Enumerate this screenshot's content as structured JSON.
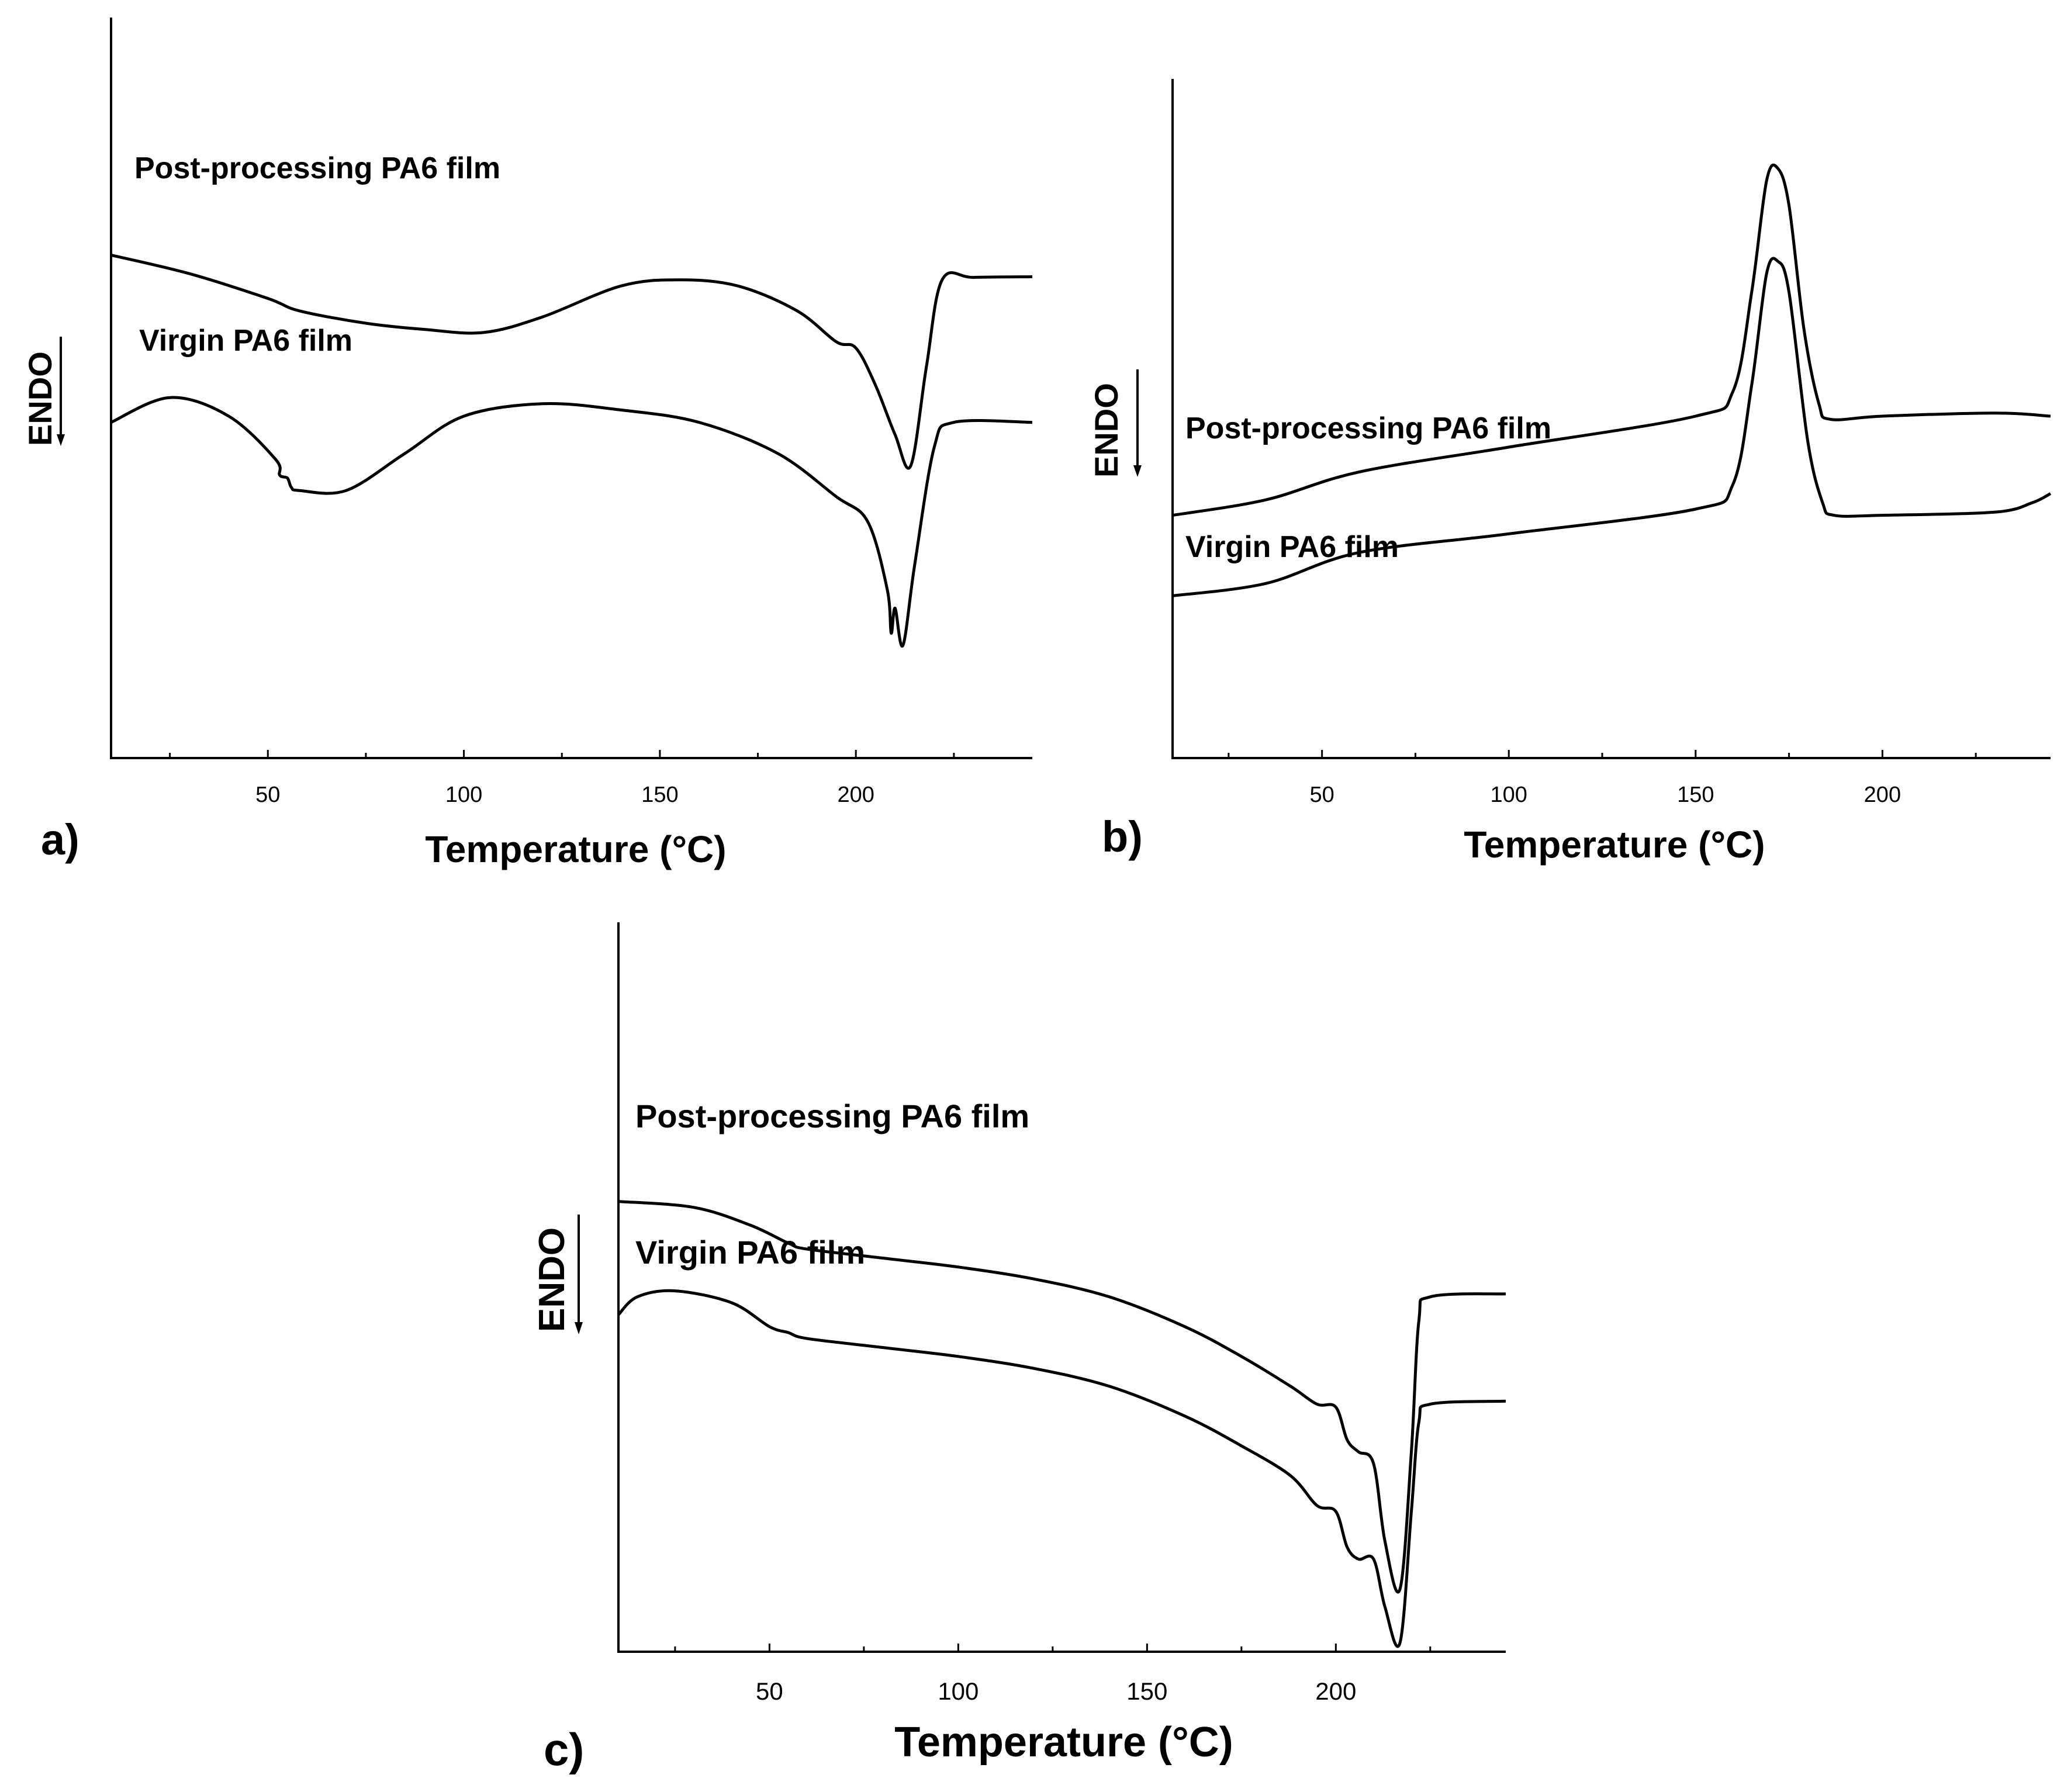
{
  "chart_data": [
    {
      "panel": "a)",
      "type": "line",
      "xlabel": "Temperature (°C)",
      "ylabel": "ENDO",
      "xlim": [
        10,
        245
      ],
      "ylim": [
        0,
        100
      ],
      "xticks": [
        50,
        100,
        150,
        200
      ],
      "series": [
        {
          "name": "Post-processing PA6 film",
          "x": [
            10,
            30,
            50,
            58,
            75,
            90,
            105,
            120,
            140,
            155,
            170,
            185,
            195,
            200,
            205,
            210,
            214,
            218,
            222,
            230,
            245
          ],
          "y": [
            76,
            73,
            69,
            67,
            65,
            64,
            63.5,
            66,
            71,
            72,
            71,
            67,
            62,
            61,
            55,
            47,
            42,
            58,
            72,
            72.4,
            72.5
          ]
        },
        {
          "name": "Virgin PA6 film",
          "x": [
            10,
            25,
            40,
            52,
            53,
            55,
            56,
            58,
            70,
            85,
            100,
            120,
            140,
            160,
            180,
            195,
            203,
            208,
            209,
            210,
            212,
            215,
            220,
            225,
            245
          ],
          "y": [
            49,
            53,
            50,
            43,
            40.5,
            40,
            38.5,
            38,
            38,
            44,
            50,
            52,
            51,
            49,
            44,
            37,
            33,
            22,
            15,
            19,
            13,
            26,
            45,
            49,
            49
          ]
        }
      ],
      "annotations": [
        "Post-processing PA6 film",
        "Virgin PA6 film"
      ]
    },
    {
      "panel": "b)",
      "type": "line",
      "xlabel": "Temperature (°C)",
      "ylabel": "ENDO",
      "xlim": [
        10,
        245
      ],
      "ylim": [
        0,
        100
      ],
      "xticks": [
        50,
        100,
        150,
        200
      ],
      "series": [
        {
          "name": "Post-processing PA6 film",
          "x": [
            10,
            35,
            60,
            100,
            150,
            160,
            165,
            169,
            172,
            175,
            179,
            183,
            186,
            200,
            230,
            245
          ],
          "y": [
            34,
            36.5,
            41,
            45,
            50,
            54,
            70,
            88,
            90,
            84,
            64,
            52,
            49.5,
            50,
            50.5,
            50
          ]
        },
        {
          "name": "Virgin PA6 film",
          "x": [
            10,
            35,
            60,
            100,
            150,
            160,
            165,
            169,
            172,
            175,
            180,
            184,
            187,
            200,
            230,
            240,
            245
          ],
          "y": [
            21,
            23,
            28,
            31,
            35,
            39,
            55,
            73,
            75,
            70,
            46,
            36,
            34,
            34,
            34.5,
            36,
            37.5
          ]
        }
      ],
      "annotations": [
        "Post-processing PA6 film",
        "Virgin PA6 film"
      ]
    },
    {
      "panel": "c)",
      "type": "line",
      "xlabel": "Temperature (°C)",
      "ylabel": "ENDO",
      "xlim": [
        10,
        245
      ],
      "ylim": [
        0,
        100
      ],
      "xticks": [
        50,
        100,
        150,
        200
      ],
      "series": [
        {
          "name": "Post-processing PA6 film",
          "x": [
            10,
            30,
            45,
            55,
            60,
            80,
            100,
            120,
            140,
            160,
            175,
            188,
            195,
            200,
            203,
            206,
            210,
            213,
            217,
            220,
            222,
            225,
            245
          ],
          "y": [
            72,
            71,
            68,
            65,
            64,
            62.5,
            61,
            59,
            56,
            51,
            46,
            41,
            38,
            37.5,
            32,
            30,
            28,
            15,
            7,
            30,
            52,
            56,
            56.5
          ]
        },
        {
          "name": "Virgin PA6 film",
          "x": [
            10,
            15,
            25,
            40,
            50,
            55,
            60,
            80,
            100,
            120,
            140,
            160,
            175,
            188,
            195,
            200,
            203,
            206,
            210,
            213,
            217,
            220,
            222,
            225,
            245
          ],
          "y": [
            53,
            56,
            57,
            55,
            51,
            50,
            49,
            47.5,
            46,
            44,
            41,
            36,
            31,
            26,
            21,
            20,
            14,
            12,
            12,
            4,
            -2,
            20,
            35,
            38,
            38.5
          ]
        }
      ],
      "annotations": [
        "Post-processing PA6 film",
        "Virgin PA6 film"
      ]
    }
  ]
}
